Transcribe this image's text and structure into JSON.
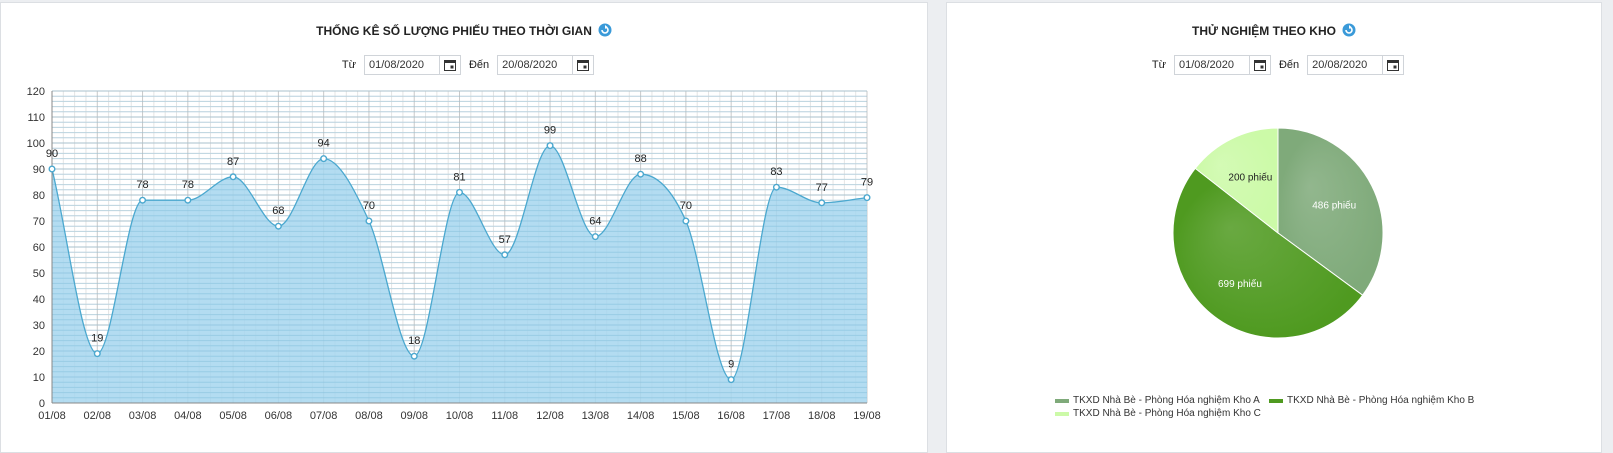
{
  "left_panel": {
    "title": "THỐNG KÊ SỐ LƯỢNG PHIẾU THEO THỜI GIAN",
    "filter": {
      "from_label": "Từ",
      "from_value": "01/08/2020",
      "to_label": "Đến",
      "to_value": "20/08/2020"
    }
  },
  "right_panel": {
    "title": "THỬ NGHIỆM THEO KHO",
    "filter": {
      "from_label": "Từ",
      "from_value": "01/08/2020",
      "to_label": "Đến",
      "to_value": "20/08/2020"
    }
  },
  "chart_data": [
    {
      "type": "area",
      "title": "THỐNG KÊ SỐ LƯỢNG PHIẾU THEO THỜI GIAN",
      "categories": [
        "01/08",
        "02/08",
        "03/08",
        "04/08",
        "05/08",
        "06/08",
        "07/08",
        "08/08",
        "09/08",
        "10/08",
        "11/08",
        "12/08",
        "13/08",
        "14/08",
        "15/08",
        "16/08",
        "17/08",
        "18/08",
        "19/08"
      ],
      "values": [
        90,
        19,
        78,
        78,
        87,
        68,
        94,
        70,
        18,
        81,
        57,
        99,
        64,
        88,
        70,
        9,
        83,
        77,
        79
      ],
      "ylim": [
        0,
        120
      ],
      "yticks": [
        0,
        10,
        20,
        30,
        40,
        50,
        60,
        70,
        80,
        90,
        100,
        110,
        120
      ],
      "grid": true,
      "colors": {
        "fill": "#a6d6ee",
        "line": "#4ba8cf",
        "grid": "#c9c9c9"
      }
    },
    {
      "type": "pie",
      "title": "THỬ NGHIỆM THEO KHO",
      "slices": [
        {
          "name": "TKXD Nhà Bè - Phòng Hóa nghiệm Kho A",
          "value": 486,
          "label": "486 phiếu",
          "color": "#7faa7a"
        },
        {
          "name": "TKXD Nhà Bè - Phòng Hóa nghiệm Kho B",
          "value": 699,
          "label": "699 phiếu",
          "color": "#4f9a20"
        },
        {
          "name": "TKXD Nhà Bè - Phòng Hóa nghiệm Kho C",
          "value": 200,
          "label": "200 phiếu",
          "color": "#ccfaa8"
        }
      ],
      "legend_position": "bottom"
    }
  ]
}
